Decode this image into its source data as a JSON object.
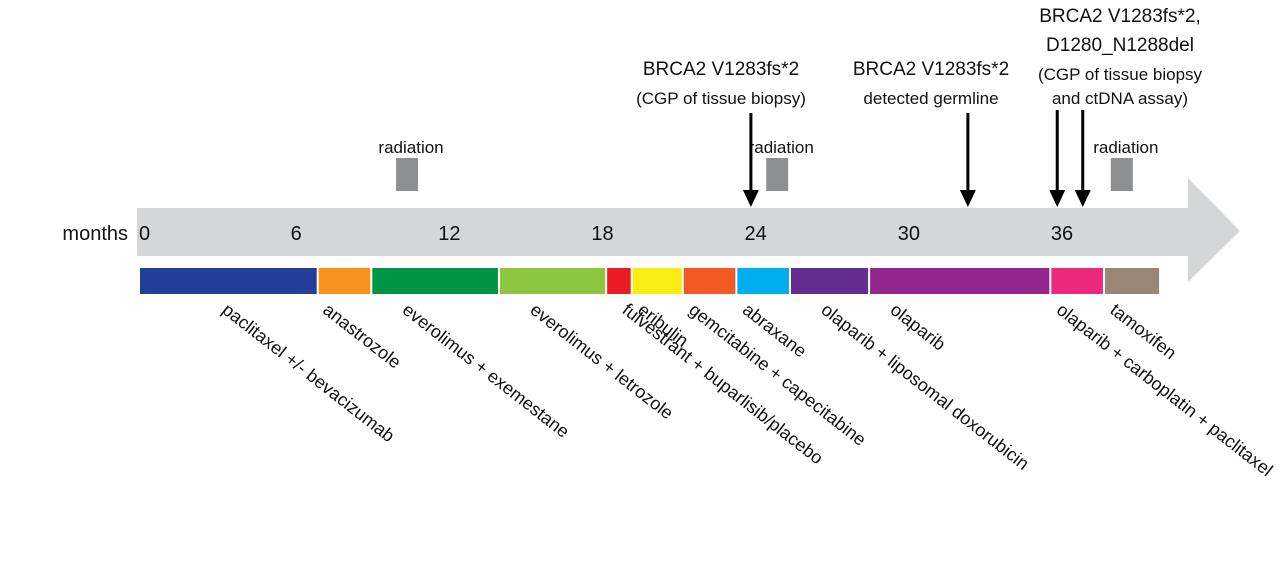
{
  "axis": {
    "label": "months",
    "start": 0,
    "end": 40,
    "ticks": [
      0,
      6,
      12,
      18,
      24,
      30,
      36
    ]
  },
  "colors": {
    "arrow_bar": "#d4d6d8",
    "event_box": "#8e8f91",
    "pointer": "#000000"
  },
  "events": [
    {
      "label": "radiation",
      "month": 10.5
    },
    {
      "label": "radiation",
      "month": 25
    },
    {
      "label": "radiation",
      "month": 38.5
    }
  ],
  "mutations": [
    {
      "lines": [
        "BRCA2 V1283fs*2",
        "(CGP of tissue biopsy)"
      ],
      "month": 23.5
    },
    {
      "lines": [
        "BRCA2 V1283fs*2",
        "detected germline"
      ],
      "month": 32
    },
    {
      "lines": [
        "BRCA2 V1283fs*2,",
        "D1280_N1288del",
        "(CGP of tissue biopsy",
        "and ctDNA  assay)"
      ],
      "month": 35.5,
      "arrow_months": [
        35.5,
        36.5
      ]
    }
  ],
  "treatments": [
    {
      "label": "paclitaxel +/- bevacizumab",
      "start": 0,
      "end": 7,
      "color": "#233e98"
    },
    {
      "label": "anastrozole",
      "start": 7,
      "end": 9.1,
      "color": "#f6921e"
    },
    {
      "label": "everolimus + exemestane",
      "start": 9.1,
      "end": 14.1,
      "color": "#009444"
    },
    {
      "label": "everolimus + letrozole",
      "start": 14.1,
      "end": 18.3,
      "color": "#8dc63f"
    },
    {
      "label": "fulvestrant + buparlisib/placebo",
      "start": 18.3,
      "end": 19.3,
      "color": "#ed1c24"
    },
    {
      "label": "eribulin",
      "start": 19.3,
      "end": 21.3,
      "color": "#f9ed13"
    },
    {
      "label": "gemcitabine + capecitabine",
      "start": 21.3,
      "end": 23.4,
      "color": "#f15a24"
    },
    {
      "label": "abraxane",
      "start": 23.4,
      "end": 25.5,
      "color": "#00aeef"
    },
    {
      "label": "olaparib + liposomal doxorubicin",
      "start": 25.5,
      "end": 28.6,
      "color": "#662d91"
    },
    {
      "label": "olaparib",
      "start": 28.6,
      "end": 35.7,
      "color": "#92278f"
    },
    {
      "label": "olaparib + carboplatin + paclitaxel",
      "start": 35.7,
      "end": 37.8,
      "color": "#ec297b"
    },
    {
      "label": "tamoxifen",
      "start": 37.8,
      "end": 40,
      "color": "#998675"
    }
  ]
}
